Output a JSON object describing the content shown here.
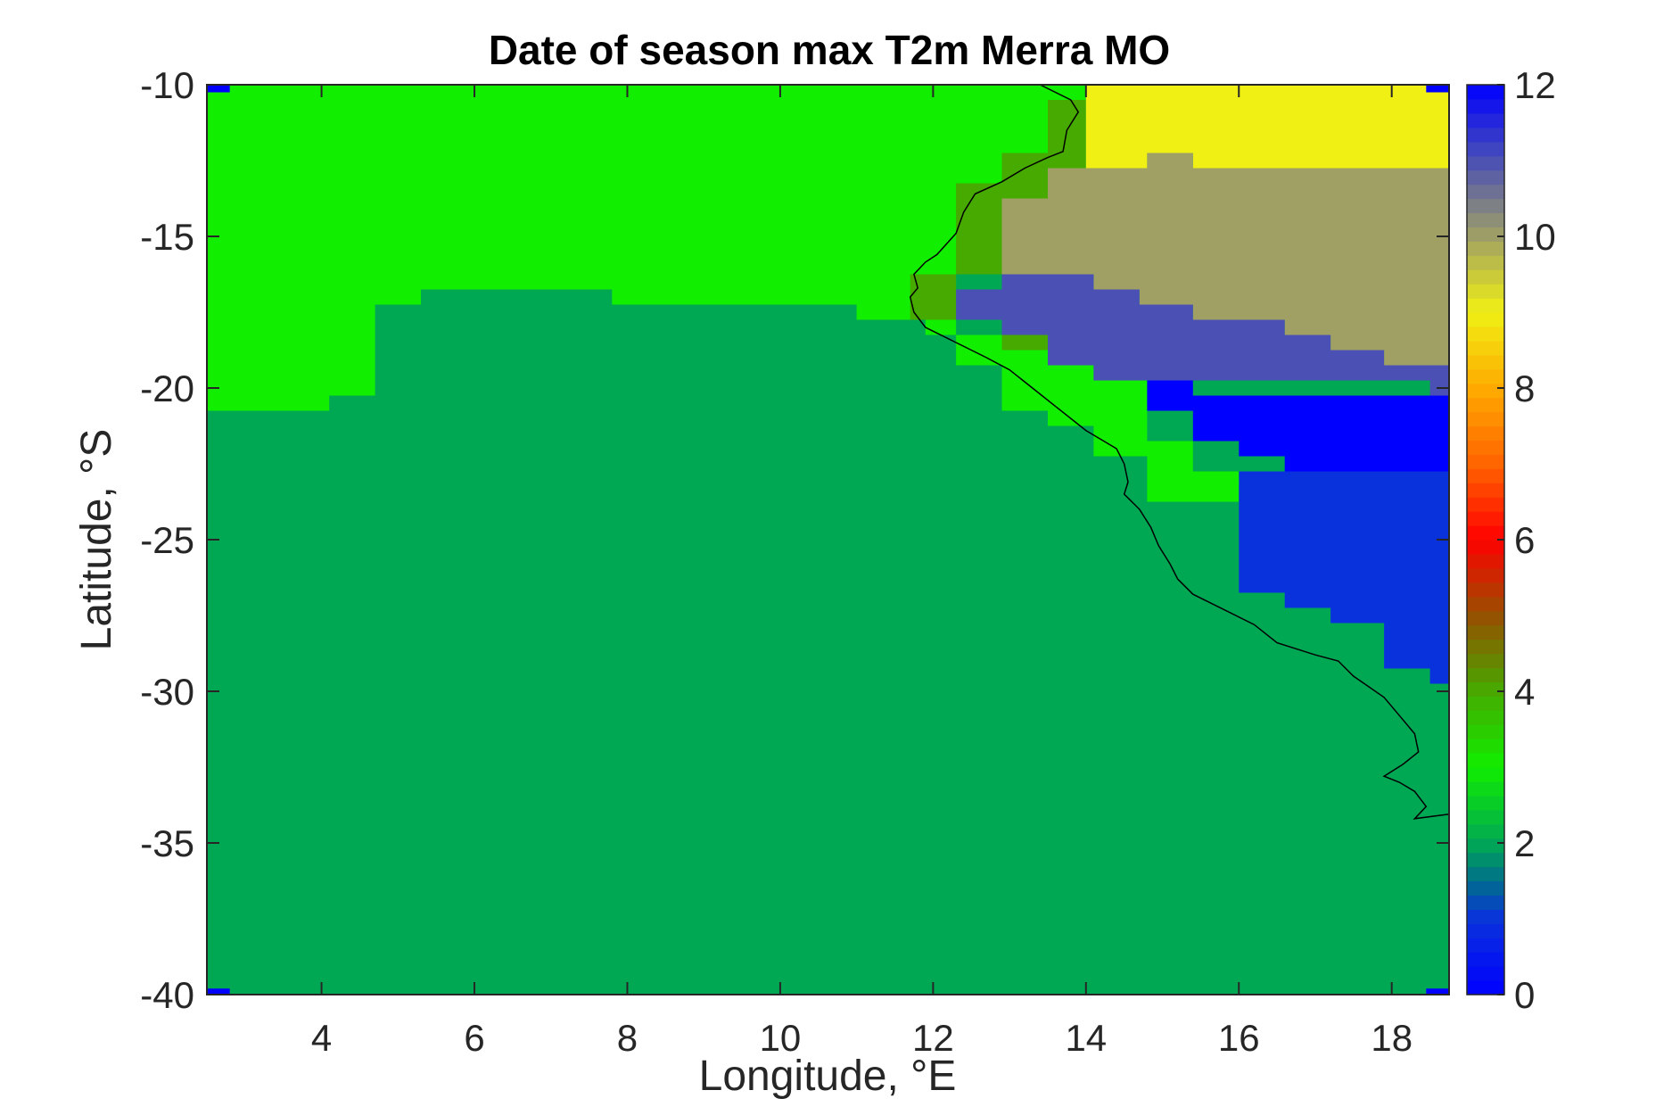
{
  "chart_data": {
    "type": "heatmap",
    "title": "Date of season max T2m Merra MO",
    "xlabel": "Longitude, °E",
    "ylabel": "Latitude, °S",
    "xlim": [
      2.5,
      18.75
    ],
    "ylim": [
      -40,
      -10
    ],
    "xticks": [
      4,
      6,
      8,
      10,
      12,
      14,
      16,
      18
    ],
    "yticks": [
      -40,
      -35,
      -30,
      -25,
      -20,
      -15,
      -10
    ],
    "colorbar": {
      "range": [
        0,
        12
      ],
      "ticks": [
        0,
        2,
        4,
        6,
        8,
        10,
        12
      ]
    },
    "background_value": 2,
    "regions": [
      {
        "value": 3,
        "polygon": [
          [
            2.5,
            -10
          ],
          [
            14.0,
            -10
          ],
          [
            14.0,
            -12.75
          ],
          [
            13.5,
            -12.75
          ],
          [
            13.5,
            -13.75
          ],
          [
            12.9,
            -13.75
          ],
          [
            12.9,
            -16.25
          ],
          [
            12.3,
            -16.25
          ],
          [
            12.3,
            -18.25
          ],
          [
            11.9,
            -18.25
          ],
          [
            11.9,
            -17.75
          ],
          [
            11.0,
            -17.75
          ],
          [
            11.0,
            -17.25
          ],
          [
            7.8,
            -17.25
          ],
          [
            7.8,
            -16.75
          ],
          [
            5.3,
            -16.75
          ],
          [
            5.3,
            -17.25
          ],
          [
            4.7,
            -17.25
          ],
          [
            4.7,
            -20.25
          ],
          [
            4.1,
            -20.25
          ],
          [
            4.1,
            -20.75
          ],
          [
            2.5,
            -20.75
          ]
        ]
      },
      {
        "value": 4,
        "polygon": [
          [
            13.5,
            -10.5
          ],
          [
            14.0,
            -10.5
          ],
          [
            14.0,
            -12.75
          ],
          [
            13.5,
            -12.75
          ],
          [
            13.5,
            -13.75
          ],
          [
            12.9,
            -13.75
          ],
          [
            12.9,
            -16.25
          ],
          [
            12.3,
            -16.25
          ],
          [
            12.3,
            -17.75
          ],
          [
            11.7,
            -17.75
          ],
          [
            11.7,
            -16.25
          ],
          [
            12.3,
            -16.25
          ],
          [
            12.3,
            -13.25
          ],
          [
            12.9,
            -13.25
          ],
          [
            12.9,
            -12.25
          ],
          [
            13.5,
            -12.25
          ]
        ]
      },
      {
        "value": 4,
        "polygon": [
          [
            12.9,
            -18.25
          ],
          [
            13.5,
            -18.25
          ],
          [
            13.5,
            -18.75
          ],
          [
            12.9,
            -18.75
          ]
        ]
      },
      {
        "value": 3,
        "polygon": [
          [
            12.3,
            -18.25
          ],
          [
            12.9,
            -18.25
          ],
          [
            12.9,
            -18.75
          ],
          [
            13.5,
            -18.75
          ],
          [
            13.5,
            -19.25
          ],
          [
            14.1,
            -19.25
          ],
          [
            14.1,
            -19.75
          ],
          [
            14.8,
            -19.75
          ],
          [
            14.8,
            -21.75
          ],
          [
            15.4,
            -21.75
          ],
          [
            15.4,
            -22.75
          ],
          [
            16.6,
            -22.75
          ],
          [
            16.6,
            -23.25
          ],
          [
            16.0,
            -23.25
          ],
          [
            16.0,
            -23.75
          ],
          [
            14.8,
            -23.75
          ],
          [
            14.8,
            -22.25
          ],
          [
            14.1,
            -22.25
          ],
          [
            14.1,
            -21.25
          ],
          [
            13.5,
            -21.25
          ],
          [
            13.5,
            -20.75
          ],
          [
            12.9,
            -20.75
          ],
          [
            12.9,
            -19.25
          ],
          [
            12.3,
            -19.25
          ]
        ]
      },
      {
        "value": 9,
        "polygon": [
          [
            14.0,
            -10
          ],
          [
            18.75,
            -10
          ],
          [
            18.75,
            -12.75
          ],
          [
            16.0,
            -12.75
          ],
          [
            15.4,
            -12.75
          ],
          [
            15.4,
            -12.25
          ],
          [
            14.8,
            -12.25
          ],
          [
            14.8,
            -12.75
          ],
          [
            14.0,
            -12.75
          ]
        ]
      },
      {
        "value": 10,
        "polygon": [
          [
            14.0,
            -12.75
          ],
          [
            14.8,
            -12.75
          ],
          [
            14.8,
            -12.25
          ],
          [
            15.4,
            -12.25
          ],
          [
            15.4,
            -12.75
          ],
          [
            18.75,
            -12.75
          ],
          [
            18.75,
            -19.25
          ],
          [
            17.9,
            -19.25
          ],
          [
            17.9,
            -18.75
          ],
          [
            17.2,
            -18.75
          ],
          [
            17.2,
            -18.25
          ],
          [
            16.6,
            -18.25
          ],
          [
            16.6,
            -17.75
          ],
          [
            15.4,
            -17.75
          ],
          [
            15.4,
            -17.25
          ],
          [
            14.7,
            -17.25
          ],
          [
            14.7,
            -16.75
          ],
          [
            14.1,
            -16.75
          ],
          [
            14.1,
            -16.25
          ],
          [
            12.9,
            -16.25
          ],
          [
            12.9,
            -13.75
          ],
          [
            13.5,
            -13.75
          ],
          [
            13.5,
            -12.75
          ]
        ]
      },
      {
        "value": 11,
        "polygon": [
          [
            12.3,
            -16.75
          ],
          [
            12.9,
            -16.75
          ],
          [
            12.9,
            -16.25
          ],
          [
            14.1,
            -16.25
          ],
          [
            14.1,
            -16.75
          ],
          [
            14.7,
            -16.75
          ],
          [
            14.7,
            -17.25
          ],
          [
            15.4,
            -17.25
          ],
          [
            15.4,
            -17.75
          ],
          [
            16.6,
            -17.75
          ],
          [
            16.6,
            -18.25
          ],
          [
            17.2,
            -18.25
          ],
          [
            17.2,
            -18.75
          ],
          [
            17.9,
            -18.75
          ],
          [
            17.9,
            -19.25
          ],
          [
            18.75,
            -19.25
          ],
          [
            18.75,
            -20.25
          ],
          [
            18.5,
            -20.25
          ],
          [
            18.5,
            -19.75
          ],
          [
            15.4,
            -19.75
          ],
          [
            15.4,
            -19.75
          ],
          [
            14.8,
            -19.75
          ],
          [
            14.1,
            -19.75
          ],
          [
            14.1,
            -19.25
          ],
          [
            13.5,
            -19.25
          ],
          [
            13.5,
            -18.25
          ],
          [
            12.9,
            -18.25
          ],
          [
            12.9,
            -17.75
          ],
          [
            12.3,
            -17.75
          ]
        ]
      },
      {
        "value": 12,
        "polygon": [
          [
            14.8,
            -19.75
          ],
          [
            15.4,
            -19.75
          ],
          [
            15.4,
            -20.25
          ],
          [
            18.5,
            -20.25
          ],
          [
            18.5,
            -20.25
          ],
          [
            18.75,
            -20.25
          ],
          [
            18.75,
            -22.75
          ],
          [
            16.6,
            -22.75
          ],
          [
            16.6,
            -22.25
          ],
          [
            16.0,
            -22.25
          ],
          [
            16.0,
            -21.75
          ],
          [
            15.4,
            -21.75
          ],
          [
            15.4,
            -20.75
          ],
          [
            14.8,
            -20.75
          ]
        ]
      },
      {
        "value": 1,
        "polygon": [
          [
            16.0,
            -22.75
          ],
          [
            18.75,
            -22.75
          ],
          [
            18.75,
            -29.75
          ],
          [
            18.5,
            -29.75
          ],
          [
            18.5,
            -29.25
          ],
          [
            17.9,
            -29.25
          ],
          [
            17.9,
            -27.75
          ],
          [
            17.2,
            -27.75
          ],
          [
            17.2,
            -27.25
          ],
          [
            16.6,
            -27.25
          ],
          [
            16.6,
            -26.75
          ],
          [
            16.0,
            -26.75
          ]
        ]
      },
      {
        "value": 12,
        "polygon": [
          [
            2.5,
            -10
          ],
          [
            2.8,
            -10
          ],
          [
            2.8,
            -10.25
          ],
          [
            2.5,
            -10.25
          ]
        ]
      },
      {
        "value": 12,
        "polygon": [
          [
            18.45,
            -10
          ],
          [
            18.75,
            -10
          ],
          [
            18.75,
            -10.25
          ],
          [
            18.45,
            -10.25
          ]
        ]
      },
      {
        "value": 12,
        "polygon": [
          [
            2.5,
            -39.8
          ],
          [
            2.8,
            -39.8
          ],
          [
            2.8,
            -40
          ],
          [
            2.5,
            -40
          ]
        ]
      },
      {
        "value": 12,
        "polygon": [
          [
            18.45,
            -39.8
          ],
          [
            18.75,
            -39.8
          ],
          [
            18.75,
            -40
          ],
          [
            18.45,
            -40
          ]
        ]
      }
    ],
    "coastline": [
      [
        13.4,
        -10.0
      ],
      [
        13.8,
        -10.5
      ],
      [
        13.9,
        -10.9
      ],
      [
        13.75,
        -11.5
      ],
      [
        13.7,
        -12.2
      ],
      [
        13.5,
        -12.4
      ],
      [
        13.2,
        -12.75
      ],
      [
        12.9,
        -13.2
      ],
      [
        12.55,
        -13.6
      ],
      [
        12.4,
        -14.2
      ],
      [
        12.3,
        -14.9
      ],
      [
        12.05,
        -15.6
      ],
      [
        11.9,
        -15.85
      ],
      [
        11.75,
        -16.25
      ],
      [
        11.8,
        -16.7
      ],
      [
        11.7,
        -17.0
      ],
      [
        11.75,
        -17.5
      ],
      [
        11.9,
        -18.0
      ],
      [
        12.3,
        -18.5
      ],
      [
        12.7,
        -19.0
      ],
      [
        13.0,
        -19.4
      ],
      [
        13.3,
        -20.0
      ],
      [
        13.6,
        -20.6
      ],
      [
        14.0,
        -21.4
      ],
      [
        14.4,
        -22.0
      ],
      [
        14.5,
        -22.5
      ],
      [
        14.55,
        -23.1
      ],
      [
        14.5,
        -23.5
      ],
      [
        14.7,
        -24.0
      ],
      [
        14.85,
        -24.6
      ],
      [
        14.95,
        -25.2
      ],
      [
        15.1,
        -25.8
      ],
      [
        15.2,
        -26.3
      ],
      [
        15.4,
        -26.8
      ],
      [
        15.8,
        -27.3
      ],
      [
        16.2,
        -27.8
      ],
      [
        16.5,
        -28.4
      ],
      [
        17.0,
        -28.8
      ],
      [
        17.3,
        -29.0
      ],
      [
        17.5,
        -29.5
      ],
      [
        17.9,
        -30.2
      ],
      [
        18.1,
        -30.8
      ],
      [
        18.3,
        -31.4
      ],
      [
        18.35,
        -32.0
      ],
      [
        18.15,
        -32.4
      ],
      [
        17.9,
        -32.8
      ],
      [
        18.1,
        -33.0
      ],
      [
        18.3,
        -33.3
      ],
      [
        18.45,
        -33.8
      ],
      [
        18.3,
        -34.2
      ],
      [
        18.75,
        -34.05
      ]
    ]
  }
}
